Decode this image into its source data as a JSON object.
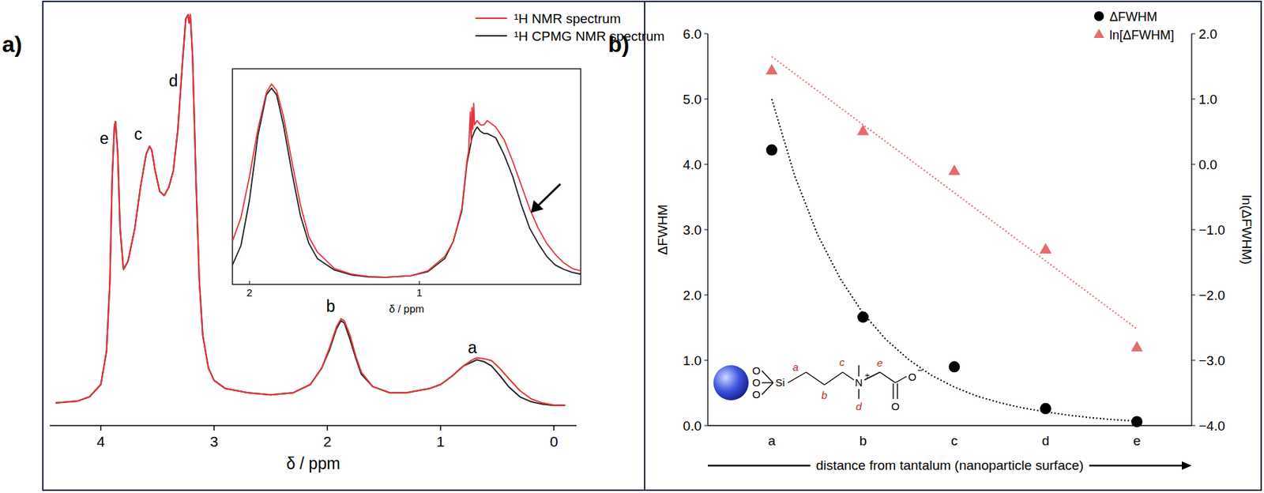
{
  "chart_data": [
    {
      "type": "line",
      "title": "a)",
      "xlabel": "δ / ppm",
      "x": [
        4.4,
        4.2,
        4.1,
        4.0,
        3.95,
        3.92,
        3.9,
        3.88,
        3.87,
        3.85,
        3.83,
        3.8,
        3.76,
        3.7,
        3.65,
        3.6,
        3.57,
        3.55,
        3.52,
        3.48,
        3.44,
        3.4,
        3.36,
        3.32,
        3.28,
        3.25,
        3.23,
        3.22,
        3.21,
        3.19,
        3.16,
        3.13,
        3.1,
        3.05,
        3.0,
        2.9,
        2.7,
        2.5,
        2.3,
        2.15,
        2.05,
        1.98,
        1.92,
        1.88,
        1.85,
        1.8,
        1.75,
        1.7,
        1.6,
        1.45,
        1.3,
        1.1,
        1.0,
        0.9,
        0.8,
        0.72,
        0.68,
        0.62,
        0.55,
        0.48,
        0.4,
        0.3,
        0.2,
        0.1,
        0.0,
        -0.1
      ],
      "xlim": [
        4.45,
        -0.2
      ],
      "xticks": [
        4,
        3,
        2,
        1,
        0
      ],
      "ylim": [
        0,
        100
      ],
      "tick_labels": "x",
      "legend": "top-right",
      "series": [
        {
          "name": "¹H NMR spectrum",
          "color": "#e8343a",
          "values": [
            5.5,
            6,
            7,
            10,
            18,
            35,
            60,
            73,
            74,
            66,
            48,
            38,
            40,
            48,
            58,
            66,
            68,
            67,
            62,
            57,
            56,
            58,
            62,
            72,
            88,
            99,
            100,
            98,
            100,
            90,
            60,
            35,
            22,
            14,
            11,
            9,
            8,
            7.5,
            8,
            10,
            14,
            19,
            24,
            26,
            25.5,
            22,
            17,
            13,
            9.5,
            8,
            8,
            9,
            10,
            12,
            14.5,
            16,
            16.5,
            16.3,
            15.8,
            14,
            11.5,
            8.5,
            6.5,
            5.5,
            5,
            5
          ]
        },
        {
          "name": "¹H CPMG NMR spectrum",
          "color": "#222222",
          "values": [
            5.5,
            6,
            7,
            10,
            18,
            35,
            60,
            73,
            74,
            66,
            48,
            38,
            40,
            48,
            58,
            66,
            68,
            67,
            62,
            57,
            56,
            58,
            62,
            72,
            88,
            99,
            100,
            98,
            100,
            90,
            60,
            35,
            22,
            14,
            11,
            9,
            8,
            7.5,
            8,
            10,
            14,
            18.5,
            23.5,
            25.5,
            25,
            21,
            16.5,
            12.5,
            9.5,
            8,
            8,
            9,
            10,
            12,
            14.5,
            15.5,
            16,
            15.6,
            14.5,
            12.3,
            9.5,
            7,
            5.8,
            5.2,
            4.9,
            4.9
          ]
        }
      ],
      "annotations": [
        {
          "text": "e",
          "x": 3.97,
          "y": 70
        },
        {
          "text": "c",
          "x": 3.67,
          "y": 71
        },
        {
          "text": "d",
          "x": 3.36,
          "y": 84
        },
        {
          "text": "b",
          "x": 1.97,
          "y": 29
        },
        {
          "text": "a",
          "x": 0.72,
          "y": 19
        }
      ]
    },
    {
      "type": "line",
      "xlabel": "δ / ppm",
      "x": [
        2.1,
        2.05,
        2.0,
        1.95,
        1.9,
        1.87,
        1.84,
        1.8,
        1.75,
        1.7,
        1.65,
        1.6,
        1.5,
        1.4,
        1.3,
        1.2,
        1.05,
        0.95,
        0.85,
        0.8,
        0.75,
        0.72,
        0.71,
        0.7,
        0.695,
        0.69,
        0.685,
        0.68,
        0.675,
        0.66,
        0.64,
        0.62,
        0.6,
        0.55,
        0.5,
        0.45,
        0.4,
        0.35,
        0.3,
        0.25,
        0.2,
        0.15,
        0.1,
        0.05
      ],
      "xlim": [
        2.1,
        0.05
      ],
      "xticks": [
        2,
        1
      ],
      "ylim": [
        0,
        100
      ],
      "tick_labels": "x",
      "series": [
        {
          "color": "#e8343a",
          "values": [
            20,
            31,
            50,
            72,
            89,
            93,
            90,
            78,
            57,
            37,
            22,
            15,
            7.4,
            4.8,
            3.7,
            3.3,
            4,
            6.3,
            13,
            20,
            35,
            57,
            62,
            80,
            66,
            82,
            72,
            84,
            74,
            76,
            74,
            74,
            76,
            73,
            67,
            57,
            46,
            35,
            26,
            19,
            14,
            10,
            7.4,
            6.3
          ]
        },
        {
          "color": "#222222",
          "values": [
            9,
            18,
            39,
            69,
            88,
            91,
            88,
            74,
            52,
            32,
            19,
            12,
            6.7,
            4.4,
            3.5,
            3.3,
            4,
            5.9,
            12,
            20,
            34,
            56,
            60,
            64,
            66,
            68,
            69,
            70,
            71,
            73,
            71,
            70,
            70,
            68,
            60,
            50,
            37,
            26,
            19,
            13,
            9,
            7,
            5.6,
            4.8
          ]
        }
      ]
    },
    {
      "type": "scatter",
      "title": "b)",
      "categories": [
        "a",
        "b",
        "c",
        "d",
        "e"
      ],
      "xlabel": "distance from tantalum (nanoparticle surface)",
      "ylabel": "ΔFWHM",
      "y2label": "ln(ΔFWHM)",
      "ylim": [
        0,
        6
      ],
      "yticks": [
        {
          "value": 0,
          "label": "0.0"
        },
        {
          "value": 1,
          "label": "1.0"
        },
        {
          "value": 2,
          "label": "2.0"
        },
        {
          "value": 3,
          "label": "3.0"
        },
        {
          "value": 4,
          "label": "4.0"
        },
        {
          "value": 5,
          "label": "5.0"
        },
        {
          "value": 6,
          "label": "6.0"
        }
      ],
      "y2lim": [
        -4,
        2
      ],
      "y2ticks": [
        {
          "value": -4,
          "label": "−4.0"
        },
        {
          "value": -3,
          "label": "−3.0"
        },
        {
          "value": -2,
          "label": "−2.0"
        },
        {
          "value": -1,
          "label": "−1.0"
        },
        {
          "value": 0,
          "label": "0.0"
        },
        {
          "value": 1,
          "label": "1.0"
        },
        {
          "value": 2,
          "label": "2.0"
        }
      ],
      "legend": "top-right",
      "series": [
        {
          "name": "ΔFWHM",
          "color": "#000000",
          "marker": "circle",
          "values": [
            4.22,
            1.66,
            0.9,
            0.26,
            0.06
          ]
        },
        {
          "name": "ln[ΔFWHM]",
          "color": "#e46c6c",
          "marker": "triangle",
          "axis": "y2",
          "values": [
            1.44,
            0.51,
            -0.1,
            -1.3,
            -2.8
          ]
        },
        {
          "type": "line",
          "line_style": "dotted",
          "color": "#000000",
          "x": [
            0,
            0.25,
            0.5,
            0.75,
            1,
            1.25,
            1.5,
            1.75,
            2,
            2.25,
            2.5,
            2.75,
            3,
            3.25,
            3.5,
            3.75,
            4
          ],
          "values": [
            5.0,
            3.83,
            2.93,
            2.25,
            1.72,
            1.32,
            1.01,
            0.77,
            0.59,
            0.45,
            0.35,
            0.27,
            0.21,
            0.16,
            0.12,
            0.09,
            0.07
          ]
        },
        {
          "type": "line",
          "line_style": "dotted",
          "color": "#e46c6c",
          "axis": "y2",
          "x": [
            0,
            4
          ],
          "values": [
            1.65,
            -2.52
          ]
        }
      ]
    }
  ],
  "structure": {
    "surface_atoms": [
      "O",
      "O",
      "O"
    ],
    "silicon": "Si",
    "nitrogen": "N",
    "nitrogen_charge": "+",
    "carbonyl_oxygen": "O",
    "oxide_oxygen": "O",
    "oxide_charge": "−",
    "labels": [
      "a",
      "b",
      "c",
      "d",
      "e"
    ]
  }
}
